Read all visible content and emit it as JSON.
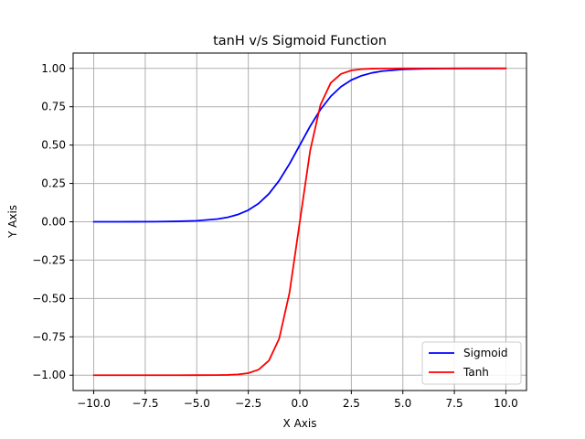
{
  "chart_data": {
    "type": "line",
    "title": "tanH v/s Sigmoid Function",
    "xlabel": "X Axis",
    "ylabel": "Y Axis",
    "xlim": [
      -11.0,
      11.0
    ],
    "ylim": [
      -1.1,
      1.1
    ],
    "xticks": [
      -10.0,
      -7.5,
      -5.0,
      -2.5,
      0.0,
      2.5,
      5.0,
      7.5,
      10.0
    ],
    "xtick_labels": [
      "−10.0",
      "−7.5",
      "−5.0",
      "−2.5",
      "0.0",
      "2.5",
      "5.0",
      "7.5",
      "10.0"
    ],
    "yticks": [
      -1.0,
      -0.75,
      -0.5,
      -0.25,
      0.0,
      0.25,
      0.5,
      0.75,
      1.0
    ],
    "ytick_labels": [
      "−1.00",
      "−0.75",
      "−0.50",
      "−0.25",
      "0.00",
      "0.25",
      "0.50",
      "0.75",
      "1.00"
    ],
    "grid": true,
    "legend": {
      "position": "lower-right"
    },
    "x": [
      -10,
      -9,
      -8,
      -7,
      -6,
      -5,
      -4,
      -3.5,
      -3,
      -2.5,
      -2,
      -1.5,
      -1,
      -0.5,
      0,
      0.5,
      1,
      1.5,
      2,
      2.5,
      3,
      3.5,
      4,
      5,
      6,
      7,
      8,
      9,
      10
    ],
    "series": [
      {
        "name": "Sigmoid",
        "color": "#0000ff",
        "values": [
          0.0,
          0.0001,
          0.0003,
          0.0009,
          0.0025,
          0.0067,
          0.018,
          0.0293,
          0.0474,
          0.0759,
          0.1192,
          0.1824,
          0.2689,
          0.3775,
          0.5,
          0.6225,
          0.7311,
          0.8176,
          0.8808,
          0.9241,
          0.9526,
          0.9707,
          0.982,
          0.9933,
          0.9975,
          0.9991,
          0.9997,
          0.9999,
          1.0
        ]
      },
      {
        "name": "Tanh",
        "color": "#ff0000",
        "values": [
          -1.0,
          -1.0,
          -1.0,
          -1.0,
          -1.0,
          -0.9999,
          -0.9993,
          -0.9982,
          -0.9951,
          -0.9866,
          -0.964,
          -0.9051,
          -0.7616,
          -0.4621,
          0.0,
          0.4621,
          0.7616,
          0.9051,
          0.964,
          0.9866,
          0.9951,
          0.9982,
          0.9993,
          0.9999,
          1.0,
          1.0,
          1.0,
          1.0,
          1.0
        ]
      }
    ]
  }
}
